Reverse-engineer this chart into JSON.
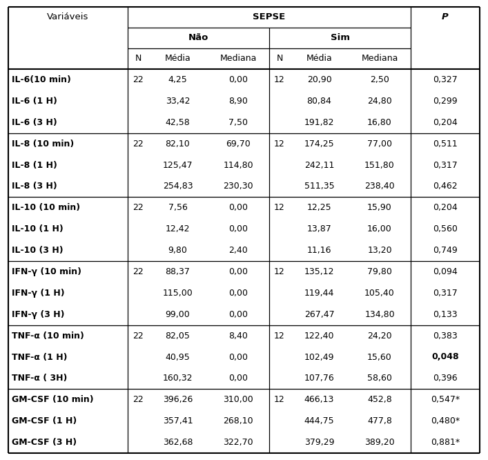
{
  "headers": {
    "col1": "Variáveis",
    "sepse": "SEPSE",
    "nao": "Não",
    "sim": "Sim",
    "p": "P",
    "sub_n": "N",
    "sub_media": "Média",
    "sub_mediana": "Mediana"
  },
  "rows": [
    {
      "variavel": "IL-6(10 min)",
      "bold": true,
      "n_nao": "22",
      "media_nao": "4,25",
      "mediana_nao": "0,00",
      "n_sim": "12",
      "media_sim": "20,90",
      "mediana_sim": "2,50",
      "p": "0,327",
      "p_bold": false
    },
    {
      "variavel": "IL-6 (1 H)",
      "bold": true,
      "n_nao": "",
      "media_nao": "33,42",
      "mediana_nao": "8,90",
      "n_sim": "",
      "media_sim": "80,84",
      "mediana_sim": "24,80",
      "p": "0,299",
      "p_bold": false
    },
    {
      "variavel": "IL-6 (3 H)",
      "bold": true,
      "n_nao": "",
      "media_nao": "42,58",
      "mediana_nao": "7,50",
      "n_sim": "",
      "media_sim": "191,82",
      "mediana_sim": "16,80",
      "p": "0,204",
      "p_bold": false
    },
    {
      "variavel": "IL-8 (10 min)",
      "bold": true,
      "n_nao": "22",
      "media_nao": "82,10",
      "mediana_nao": "69,70",
      "n_sim": "12",
      "media_sim": "174,25",
      "mediana_sim": "77,00",
      "p": "0,511",
      "p_bold": false
    },
    {
      "variavel": "IL-8 (1 H)",
      "bold": true,
      "n_nao": "",
      "media_nao": "125,47",
      "mediana_nao": "114,80",
      "n_sim": "",
      "media_sim": "242,11",
      "mediana_sim": "151,80",
      "p": "0,317",
      "p_bold": false
    },
    {
      "variavel": "IL-8 (3 H)",
      "bold": true,
      "n_nao": "",
      "media_nao": "254,83",
      "mediana_nao": "230,30",
      "n_sim": "",
      "media_sim": "511,35",
      "mediana_sim": "238,40",
      "p": "0,462",
      "p_bold": false
    },
    {
      "variavel": "IL-10 (10 min)",
      "bold": true,
      "n_nao": "22",
      "media_nao": "7,56",
      "mediana_nao": "0,00",
      "n_sim": "12",
      "media_sim": "12,25",
      "mediana_sim": "15,90",
      "p": "0,204",
      "p_bold": false
    },
    {
      "variavel": "IL-10 (1 H)",
      "bold": true,
      "n_nao": "",
      "media_nao": "12,42",
      "mediana_nao": "0,00",
      "n_sim": "",
      "media_sim": "13,87",
      "mediana_sim": "16,00",
      "p": "0,560",
      "p_bold": false
    },
    {
      "variavel": "IL-10 (3 H)",
      "bold": true,
      "n_nao": "",
      "media_nao": "9,80",
      "mediana_nao": "2,40",
      "n_sim": "",
      "media_sim": "11,16",
      "mediana_sim": "13,20",
      "p": "0,749",
      "p_bold": false
    },
    {
      "variavel": "IFN-γ (10 min)",
      "bold": true,
      "n_nao": "22",
      "media_nao": "88,37",
      "mediana_nao": "0,00",
      "n_sim": "12",
      "media_sim": "135,12",
      "mediana_sim": "79,80",
      "p": "0,094",
      "p_bold": false
    },
    {
      "variavel": "IFN-γ (1 H)",
      "bold": true,
      "n_nao": "",
      "media_nao": "115,00",
      "mediana_nao": "0,00",
      "n_sim": "",
      "media_sim": "119,44",
      "mediana_sim": "105,40",
      "p": "0,317",
      "p_bold": false
    },
    {
      "variavel": "IFN-γ (3 H)",
      "bold": true,
      "n_nao": "",
      "media_nao": "99,00",
      "mediana_nao": "0,00",
      "n_sim": "",
      "media_sim": "267,47",
      "mediana_sim": "134,80",
      "p": "0,133",
      "p_bold": false
    },
    {
      "variavel": "TNF-α (10 min)",
      "bold": true,
      "n_nao": "22",
      "media_nao": "82,05",
      "mediana_nao": "8,40",
      "n_sim": "12",
      "media_sim": "122,40",
      "mediana_sim": "24,20",
      "p": "0,383",
      "p_bold": false
    },
    {
      "variavel": "TNF-α (1 H)",
      "bold": true,
      "n_nao": "",
      "media_nao": "40,95",
      "mediana_nao": "0,00",
      "n_sim": "",
      "media_sim": "102,49",
      "mediana_sim": "15,60",
      "p": "0,048",
      "p_bold": true
    },
    {
      "variavel": "TNF-α ( 3H)",
      "bold": true,
      "n_nao": "",
      "media_nao": "160,32",
      "mediana_nao": "0,00",
      "n_sim": "",
      "media_sim": "107,76",
      "mediana_sim": "58,60",
      "p": "0,396",
      "p_bold": false
    },
    {
      "variavel": "GM-CSF (10 min)",
      "bold": true,
      "n_nao": "22",
      "media_nao": "396,26",
      "mediana_nao": "310,00",
      "n_sim": "12",
      "media_sim": "466,13",
      "mediana_sim": "452,8",
      "p": "0,547*",
      "p_bold": false
    },
    {
      "variavel": "GM-CSF (1 H)",
      "bold": true,
      "n_nao": "",
      "media_nao": "357,41",
      "mediana_nao": "268,10",
      "n_sim": "",
      "media_sim": "444,75",
      "mediana_sim": "477,8",
      "p": "0,480*",
      "p_bold": false
    },
    {
      "variavel": "GM-CSF (3 H)",
      "bold": true,
      "n_nao": "",
      "media_nao": "362,68",
      "mediana_nao": "322,70",
      "n_sim": "",
      "media_sim": "379,29",
      "mediana_sim": "389,20",
      "p": "0,881*",
      "p_bold": false
    }
  ],
  "group_starts": [
    0,
    3,
    6,
    9,
    12,
    15
  ],
  "bg_color": "#ffffff",
  "figsize": [
    7.07,
    6.66
  ],
  "dpi": 100
}
